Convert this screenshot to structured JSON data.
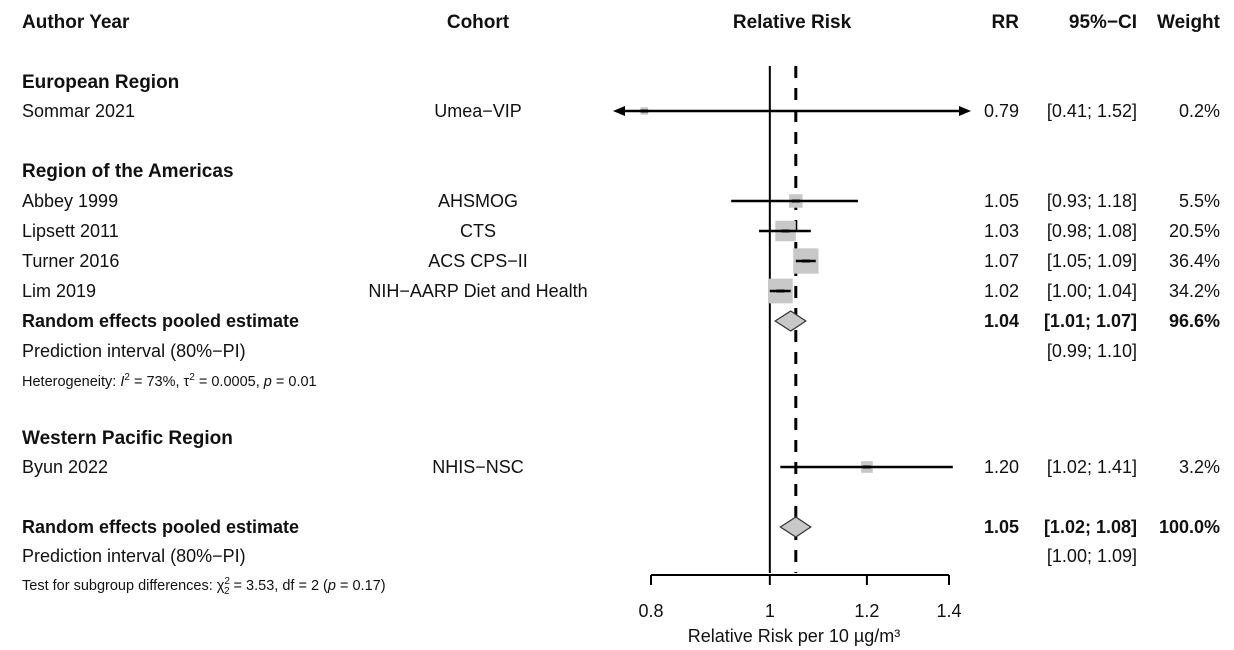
{
  "chart_data": {
    "type": "forest",
    "xlabel": "Relative Risk per 10 µg/m³",
    "scale": "log",
    "xlim": [
      0.8,
      1.4
    ],
    "xticks": [
      0.8,
      1,
      1.2,
      1.4
    ],
    "xtick_labels": [
      "0.8",
      "1",
      "1.2",
      "1.4"
    ],
    "reference_line": 1,
    "overall_dashed_line": 1.05,
    "headers": {
      "study": "Author Year",
      "cohort": "Cohort",
      "plot": "Relative Risk",
      "rr": "RR",
      "ci": "95%−CI",
      "weight": "Weight"
    },
    "rows": [
      {
        "kind": "group",
        "label": "European Region"
      },
      {
        "kind": "study",
        "study": "Sommar 2021",
        "cohort": "Umea−VIP",
        "rr": 0.79,
        "lower": 0.41,
        "upper": 1.52,
        "weight": 0.2,
        "rr_text": "0.79",
        "ci_text": "[0.41; 1.52]",
        "weight_text": "0.2%"
      },
      {
        "kind": "gap"
      },
      {
        "kind": "group",
        "label": "Region of the Americas"
      },
      {
        "kind": "study",
        "study": "Abbey 1999",
        "cohort": "AHSMOG",
        "rr": 1.05,
        "lower": 0.93,
        "upper": 1.18,
        "weight": 5.5,
        "rr_text": "1.05",
        "ci_text": "[0.93; 1.18]",
        "weight_text": "5.5%"
      },
      {
        "kind": "study",
        "study": "Lipsett 2011",
        "cohort": "CTS",
        "rr": 1.03,
        "lower": 0.98,
        "upper": 1.08,
        "weight": 20.5,
        "rr_text": "1.03",
        "ci_text": "[0.98; 1.08]",
        "weight_text": "20.5%"
      },
      {
        "kind": "study",
        "study": "Turner 2016",
        "cohort": "ACS CPS−II",
        "rr": 1.07,
        "lower": 1.05,
        "upper": 1.09,
        "weight": 36.4,
        "rr_text": "1.07",
        "ci_text": "[1.05; 1.09]",
        "weight_text": "36.4%"
      },
      {
        "kind": "study",
        "study": "Lim 2019",
        "cohort": "NIH−AARP Diet and Health",
        "rr": 1.02,
        "lower": 1.0,
        "upper": 1.04,
        "weight": 34.2,
        "rr_text": "1.02",
        "ci_text": "[1.00; 1.04]",
        "weight_text": "34.2%"
      },
      {
        "kind": "pooled",
        "study": "Random effects pooled estimate",
        "rr": 1.04,
        "lower": 1.01,
        "upper": 1.07,
        "rr_text": "1.04",
        "ci_text": "[1.01; 1.07]",
        "weight_text": "96.6%"
      },
      {
        "kind": "pi",
        "study": "Prediction interval (80%−PI)",
        "lower": 0.99,
        "upper": 1.1,
        "ci_text": "[0.99; 1.10]"
      },
      {
        "kind": "note",
        "parts": [
          "Heterogeneity: ",
          "I",
          "2",
          " = 73%, τ",
          "2",
          " = 0.0005, ",
          "p",
          " = 0.01"
        ]
      },
      {
        "kind": "gap"
      },
      {
        "kind": "group",
        "label": "Western Pacific Region"
      },
      {
        "kind": "study",
        "study": "Byun 2022",
        "cohort": "NHIS−NSC",
        "rr": 1.2,
        "lower": 1.02,
        "upper": 1.41,
        "weight": 3.2,
        "rr_text": "1.20",
        "ci_text": "[1.02; 1.41]",
        "weight_text": "3.2%"
      },
      {
        "kind": "gap"
      },
      {
        "kind": "pooled",
        "study": "Random effects pooled estimate",
        "rr": 1.05,
        "lower": 1.02,
        "upper": 1.08,
        "rr_text": "1.05",
        "ci_text": "[1.02; 1.08]",
        "weight_text": "100.0%"
      },
      {
        "kind": "pi",
        "study": "Prediction interval (80%−PI)",
        "lower": 1.0,
        "upper": 1.09,
        "ci_text": "[1.00; 1.09]"
      },
      {
        "kind": "note",
        "parts": [
          "Test for subgroup differences: χ",
          "2",
          "2",
          " = 3.53, df = 2 (",
          "p",
          " = 0.17)"
        ]
      }
    ],
    "colors": {
      "text": "#111111",
      "square": "#c8c8c8",
      "diamond": "#c8c8c8",
      "line": "#000000"
    }
  }
}
